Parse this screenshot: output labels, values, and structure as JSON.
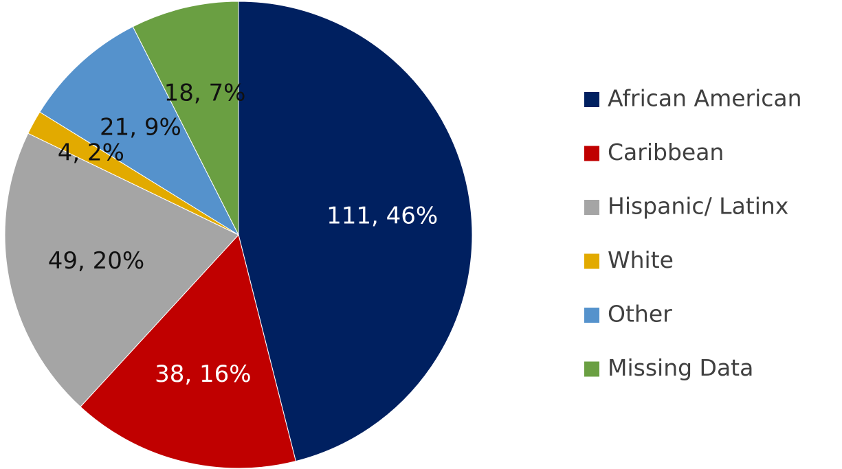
{
  "chart_data": {
    "type": "pie",
    "categories": [
      "African American",
      "Caribbean",
      "Hispanic/ Latinx",
      "White",
      "Other",
      "Missing Data"
    ],
    "values": [
      111,
      38,
      49,
      4,
      21,
      18
    ],
    "value_labels": [
      "111, 46%",
      "38, 16%",
      "49, 20%",
      "4, 2%",
      "21, 9%",
      "18, 7%"
    ],
    "colors": [
      "#002060",
      "#c00000",
      "#a5a5a5",
      "#e2aa00",
      "#5592cc",
      "#6a9f42"
    ],
    "legend": "right"
  }
}
